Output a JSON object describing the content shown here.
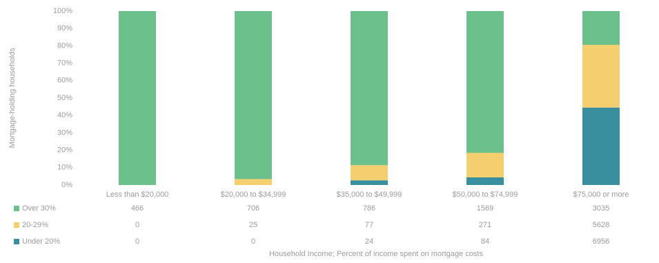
{
  "chart_data": {
    "type": "stacked_percent_bar",
    "y_label": "Mortgage-holding households",
    "x_label": "Household Income; Percent of income spent on mortgage costs",
    "categories": [
      "Less than $20,000",
      "$20,000 to $34,999",
      "$35,000 to $49,999",
      "$50,000 to $74,999",
      "$75,000 or more"
    ],
    "series": [
      {
        "name": "Over 30%",
        "color": "#6cc08b",
        "values": [
          466,
          706,
          786,
          1569,
          3035
        ]
      },
      {
        "name": "20-29%",
        "color": "#f5cf6f",
        "values": [
          0,
          25,
          77,
          271,
          5628
        ]
      },
      {
        "name": "Under 20%",
        "color": "#3a8f9e",
        "values": [
          0,
          0,
          24,
          84,
          6956
        ]
      }
    ],
    "ylim": [
      0,
      100
    ],
    "yticks": [
      {
        "value": 0,
        "label": "0%"
      },
      {
        "value": 10,
        "label": "10%"
      },
      {
        "value": 20,
        "label": "20%"
      },
      {
        "value": 30,
        "label": "30%"
      },
      {
        "value": 40,
        "label": "40%"
      },
      {
        "value": 50,
        "label": "50%"
      },
      {
        "value": 60,
        "label": "60%"
      },
      {
        "value": 70,
        "label": "70%"
      },
      {
        "value": 80,
        "label": "80%"
      },
      {
        "value": 90,
        "label": "90%"
      },
      {
        "value": 100,
        "label": "100%"
      }
    ]
  }
}
